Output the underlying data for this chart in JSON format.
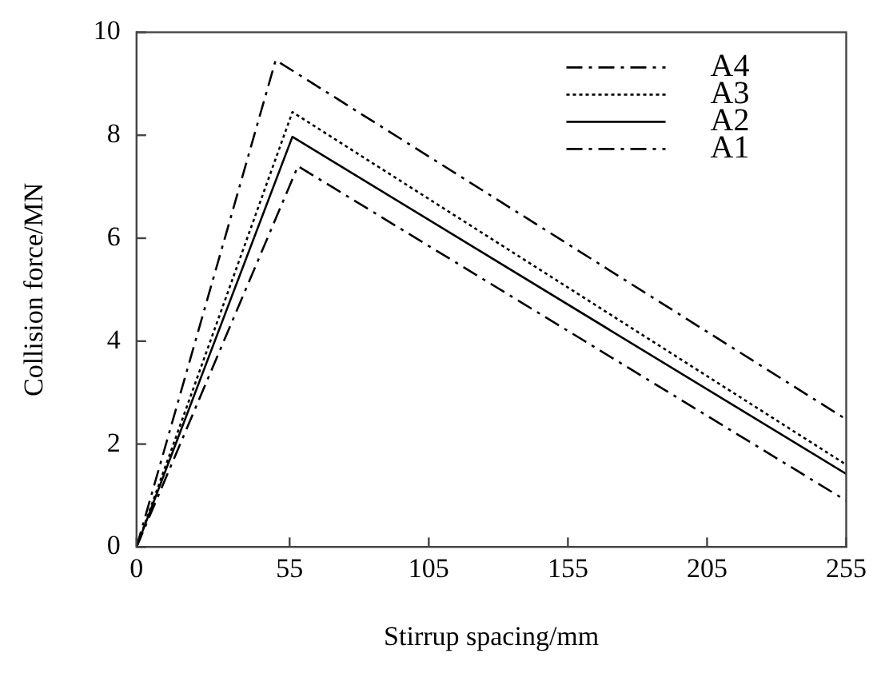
{
  "chart_data": {
    "type": "line",
    "xlabel": "Stirrup spacing/mm",
    "ylabel": "Collision force/MN",
    "xlim": [
      0,
      255
    ],
    "xticks": [
      0,
      55,
      105,
      155,
      205,
      255
    ],
    "ylim": [
      0,
      10
    ],
    "yticks": [
      0,
      2,
      4,
      6,
      8,
      10
    ],
    "grid": false,
    "legend": "top right",
    "marker": "none",
    "series": [
      {
        "name": "A4",
        "color": "#000000",
        "line_style": "dashed",
        "x": [
          0,
          50,
          255
        ],
        "values": [
          0,
          9.46,
          2.48
        ]
      },
      {
        "name": "A3",
        "color": "#000000",
        "line_style": "dotted",
        "x": [
          0,
          56,
          255
        ],
        "values": [
          0,
          8.45,
          1.6
        ]
      },
      {
        "name": "A2",
        "color": "#000000",
        "line_style": "solid",
        "x": [
          0,
          56,
          255
        ],
        "values": [
          0,
          7.97,
          1.42
        ]
      },
      {
        "name": "A1",
        "color": "#000000",
        "line_style": "dashed",
        "x": [
          0,
          58,
          255
        ],
        "values": [
          0,
          7.4,
          0.9
        ]
      }
    ]
  }
}
